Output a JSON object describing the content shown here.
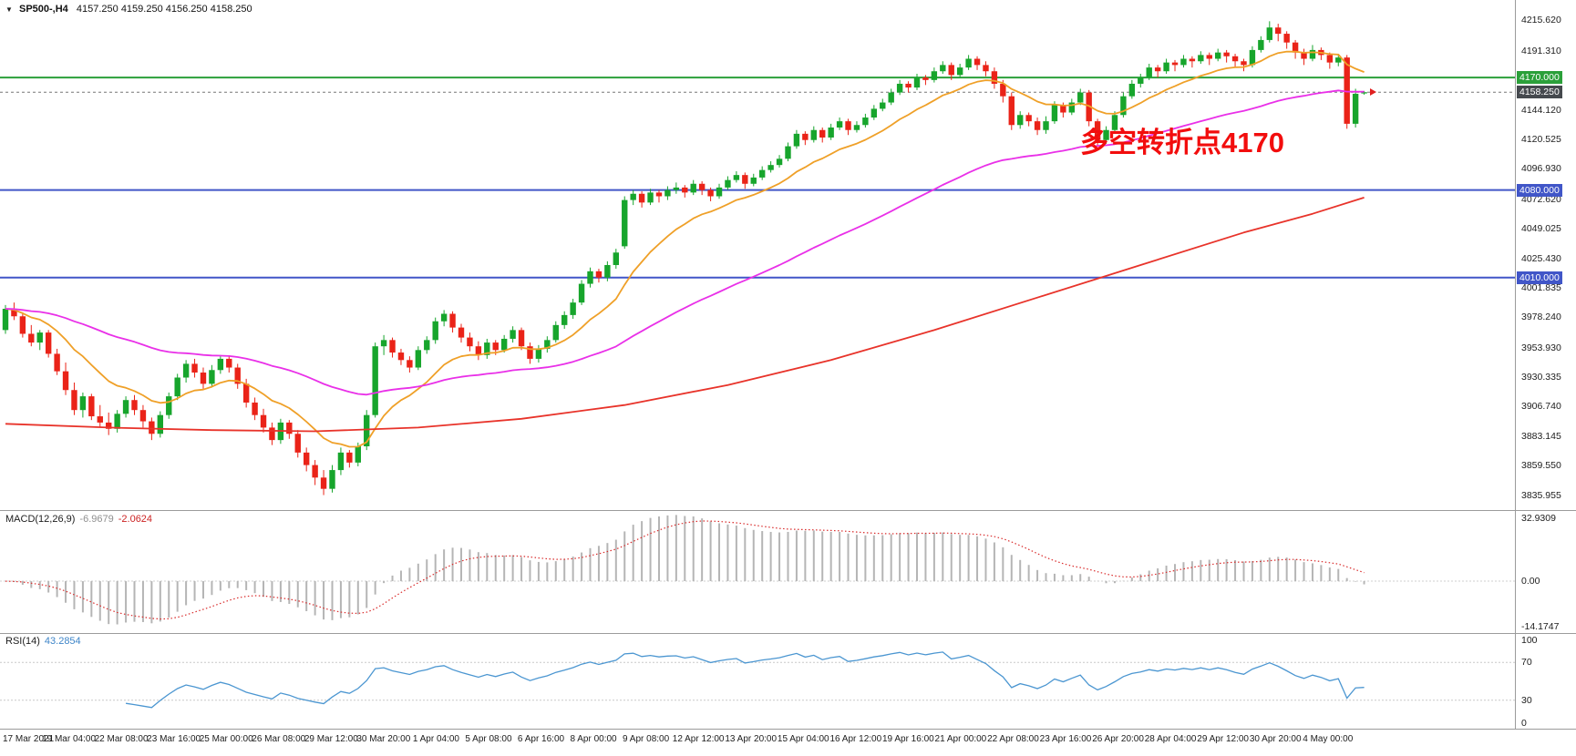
{
  "header": {
    "dropdown_icon": "▼",
    "symbol_period": "SP500-,H4",
    "open": "4157.250",
    "high": "4159.250",
    "low": "4156.250",
    "close": "4158.250"
  },
  "annotation": {
    "text": "多空转折点4170",
    "color": "#f20d0d"
  },
  "price_axis": {
    "labels": [
      "4215.620",
      "4191.310",
      "4144.120",
      "4120.525",
      "4096.930",
      "4072.620",
      "4049.025",
      "4025.430",
      "4001.835",
      "3978.240",
      "3953.930",
      "3930.335",
      "3906.740",
      "3883.145",
      "3859.550",
      "3835.955"
    ],
    "badges": [
      {
        "text": "4170.000",
        "type": "level-green",
        "price": 4170.0
      },
      {
        "text": "4158.250",
        "type": "current",
        "price": 4158.25
      },
      {
        "text": "4080.000",
        "type": "level-blue",
        "price": 4080.0
      },
      {
        "text": "4010.000",
        "type": "level-blue",
        "price": 4010.0
      }
    ]
  },
  "chart_data": {
    "type": "candlestick",
    "title": "SP500- H4",
    "y_range": [
      3824,
      4232
    ],
    "current_price": 4158.25,
    "candle_colors": {
      "up": "#17a52c",
      "down": "#ea2318"
    },
    "horizontal_lines": [
      {
        "price": 4170.0,
        "color": "#2ba03a",
        "width": 2
      },
      {
        "price": 4080.0,
        "color": "#4156c8",
        "width": 2
      },
      {
        "price": 4010.0,
        "color": "#4156c8",
        "width": 2
      }
    ],
    "x_labels": [
      "17 Mar 2021",
      "19 Mar 04:00",
      "22 Mar 08:00",
      "23 Mar 16:00",
      "25 Mar 00:00",
      "26 Mar 08:00",
      "29 Mar 12:00",
      "30 Mar 20:00",
      "1 Apr 04:00",
      "5 Apr 08:00",
      "6 Apr 16:00",
      "8 Apr 00:00",
      "9 Apr 08:00",
      "12 Apr 12:00",
      "13 Apr 20:00",
      "15 Apr 04:00",
      "16 Apr 12:00",
      "19 Apr 16:00",
      "21 Apr 00:00",
      "22 Apr 08:00",
      "23 Apr 16:00",
      "26 Apr 20:00",
      "28 Apr 04:00",
      "29 Apr 12:00",
      "30 Apr 20:00",
      "4 May 00:00"
    ],
    "candles": [
      [
        3968,
        3988,
        3965,
        3985
      ],
      [
        3985,
        3990,
        3976,
        3979
      ],
      [
        3979,
        3982,
        3962,
        3965
      ],
      [
        3965,
        3972,
        3955,
        3958
      ],
      [
        3958,
        3968,
        3952,
        3966
      ],
      [
        3966,
        3968,
        3946,
        3949
      ],
      [
        3949,
        3953,
        3932,
        3935
      ],
      [
        3935,
        3942,
        3916,
        3920
      ],
      [
        3920,
        3926,
        3900,
        3904
      ],
      [
        3904,
        3918,
        3898,
        3915
      ],
      [
        3915,
        3917,
        3896,
        3899
      ],
      [
        3899,
        3908,
        3890,
        3894
      ],
      [
        3894,
        3902,
        3884,
        3889
      ],
      [
        3889,
        3904,
        3886,
        3901
      ],
      [
        3901,
        3915,
        3898,
        3912
      ],
      [
        3912,
        3916,
        3900,
        3904
      ],
      [
        3904,
        3908,
        3890,
        3895
      ],
      [
        3895,
        3898,
        3880,
        3885
      ],
      [
        3885,
        3903,
        3882,
        3900
      ],
      [
        3900,
        3918,
        3897,
        3915
      ],
      [
        3915,
        3933,
        3912,
        3930
      ],
      [
        3930,
        3944,
        3926,
        3941
      ],
      [
        3941,
        3945,
        3930,
        3934
      ],
      [
        3934,
        3938,
        3921,
        3925
      ],
      [
        3925,
        3940,
        3922,
        3936
      ],
      [
        3936,
        3948,
        3933,
        3945
      ],
      [
        3945,
        3947,
        3934,
        3938
      ],
      [
        3938,
        3941,
        3921,
        3925
      ],
      [
        3925,
        3929,
        3906,
        3910
      ],
      [
        3910,
        3914,
        3896,
        3900
      ],
      [
        3900,
        3905,
        3886,
        3890
      ],
      [
        3890,
        3894,
        3876,
        3880
      ],
      [
        3880,
        3897,
        3877,
        3894
      ],
      [
        3894,
        3896,
        3881,
        3885
      ],
      [
        3885,
        3888,
        3866,
        3870
      ],
      [
        3870,
        3874,
        3855,
        3860
      ],
      [
        3860,
        3864,
        3844,
        3850
      ],
      [
        3850,
        3856,
        3836,
        3841
      ],
      [
        3841,
        3860,
        3838,
        3856
      ],
      [
        3856,
        3874,
        3852,
        3870
      ],
      [
        3870,
        3872,
        3858,
        3862
      ],
      [
        3862,
        3878,
        3859,
        3875
      ],
      [
        3875,
        3904,
        3872,
        3900
      ],
      [
        3900,
        3958,
        3898,
        3955
      ],
      [
        3955,
        3964,
        3948,
        3960
      ],
      [
        3960,
        3962,
        3946,
        3950
      ],
      [
        3950,
        3953,
        3940,
        3944
      ],
      [
        3944,
        3947,
        3934,
        3938
      ],
      [
        3938,
        3955,
        3936,
        3952
      ],
      [
        3952,
        3963,
        3949,
        3960
      ],
      [
        3960,
        3978,
        3957,
        3975
      ],
      [
        3975,
        3984,
        3971,
        3981
      ],
      [
        3981,
        3983,
        3966,
        3970
      ],
      [
        3970,
        3973,
        3958,
        3962
      ],
      [
        3962,
        3966,
        3951,
        3955
      ],
      [
        3955,
        3959,
        3944,
        3948
      ],
      [
        3948,
        3961,
        3945,
        3958
      ],
      [
        3958,
        3960,
        3948,
        3952
      ],
      [
        3952,
        3964,
        3950,
        3961
      ],
      [
        3961,
        3971,
        3958,
        3968
      ],
      [
        3968,
        3970,
        3952,
        3955
      ],
      [
        3955,
        3958,
        3941,
        3945
      ],
      [
        3945,
        3956,
        3942,
        3953
      ],
      [
        3953,
        3963,
        3950,
        3960
      ],
      [
        3960,
        3975,
        3958,
        3972
      ],
      [
        3972,
        3983,
        3969,
        3980
      ],
      [
        3980,
        3993,
        3977,
        3990
      ],
      [
        3990,
        4008,
        3988,
        4005
      ],
      [
        4005,
        4018,
        4002,
        4015
      ],
      [
        4015,
        4017,
        4006,
        4010
      ],
      [
        4010,
        4023,
        4007,
        4020
      ],
      [
        4020,
        4033,
        4017,
        4030
      ],
      [
        4035,
        4075,
        4033,
        4072
      ],
      [
        4072,
        4080,
        4068,
        4077
      ],
      [
        4077,
        4079,
        4066,
        4070
      ],
      [
        4070,
        4081,
        4068,
        4078
      ],
      [
        4078,
        4080,
        4070,
        4075
      ],
      [
        4075,
        4083,
        4072,
        4080
      ],
      [
        4080,
        4086,
        4077,
        4082
      ],
      [
        4082,
        4084,
        4074,
        4078
      ],
      [
        4078,
        4088,
        4076,
        4085
      ],
      [
        4085,
        4087,
        4076,
        4080
      ],
      [
        4080,
        4082,
        4071,
        4075
      ],
      [
        4075,
        4085,
        4073,
        4082
      ],
      [
        4082,
        4091,
        4080,
        4088
      ],
      [
        4088,
        4095,
        4086,
        4092
      ],
      [
        4092,
        4094,
        4081,
        4085
      ],
      [
        4085,
        4093,
        4083,
        4090
      ],
      [
        4090,
        4099,
        4088,
        4096
      ],
      [
        4096,
        4103,
        4094,
        4100
      ],
      [
        4100,
        4108,
        4098,
        4105
      ],
      [
        4105,
        4118,
        4103,
        4115
      ],
      [
        4115,
        4128,
        4113,
        4125
      ],
      [
        4125,
        4127,
        4116,
        4120
      ],
      [
        4120,
        4131,
        4118,
        4128
      ],
      [
        4128,
        4130,
        4118,
        4122
      ],
      [
        4122,
        4133,
        4120,
        4130
      ],
      [
        4130,
        4138,
        4128,
        4135
      ],
      [
        4135,
        4137,
        4124,
        4128
      ],
      [
        4128,
        4135,
        4126,
        4132
      ],
      [
        4132,
        4141,
        4130,
        4138
      ],
      [
        4138,
        4148,
        4136,
        4145
      ],
      [
        4145,
        4153,
        4143,
        4150
      ],
      [
        4150,
        4161,
        4148,
        4158
      ],
      [
        4158,
        4168,
        4156,
        4165
      ],
      [
        4165,
        4167,
        4158,
        4162
      ],
      [
        4162,
        4173,
        4160,
        4170
      ],
      [
        4170,
        4172,
        4164,
        4168
      ],
      [
        4168,
        4178,
        4166,
        4175
      ],
      [
        4175,
        4183,
        4173,
        4180
      ],
      [
        4180,
        4182,
        4168,
        4172
      ],
      [
        4172,
        4181,
        4170,
        4178
      ],
      [
        4178,
        4188,
        4176,
        4185
      ],
      [
        4185,
        4187,
        4176,
        4180
      ],
      [
        4180,
        4183,
        4171,
        4175
      ],
      [
        4175,
        4178,
        4161,
        4165
      ],
      [
        4165,
        4168,
        4150,
        4155
      ],
      [
        4155,
        4158,
        4128,
        4132
      ],
      [
        4132,
        4143,
        4129,
        4140
      ],
      [
        4140,
        4142,
        4131,
        4135
      ],
      [
        4135,
        4138,
        4124,
        4128
      ],
      [
        4128,
        4139,
        4125,
        4135
      ],
      [
        4135,
        4151,
        4133,
        4148
      ],
      [
        4148,
        4150,
        4138,
        4142
      ],
      [
        4142,
        4153,
        4140,
        4150
      ],
      [
        4150,
        4161,
        4148,
        4158
      ],
      [
        4158,
        4160,
        4131,
        4135
      ],
      [
        4135,
        4137,
        4115,
        4120
      ],
      [
        4120,
        4131,
        4117,
        4128
      ],
      [
        4128,
        4143,
        4126,
        4140
      ],
      [
        4140,
        4158,
        4138,
        4155
      ],
      [
        4155,
        4168,
        4153,
        4165
      ],
      [
        4165,
        4173,
        4162,
        4170
      ],
      [
        4170,
        4181,
        4168,
        4178
      ],
      [
        4178,
        4180,
        4170,
        4175
      ],
      [
        4175,
        4185,
        4173,
        4182
      ],
      [
        4182,
        4184,
        4175,
        4180
      ],
      [
        4180,
        4188,
        4178,
        4185
      ],
      [
        4185,
        4187,
        4178,
        4183
      ],
      [
        4183,
        4191,
        4181,
        4188
      ],
      [
        4188,
        4190,
        4180,
        4185
      ],
      [
        4185,
        4193,
        4183,
        4190
      ],
      [
        4190,
        4192,
        4182,
        4187
      ],
      [
        4187,
        4189,
        4178,
        4183
      ],
      [
        4183,
        4185,
        4175,
        4180
      ],
      [
        4180,
        4195,
        4178,
        4192
      ],
      [
        4192,
        4203,
        4190,
        4200
      ],
      [
        4200,
        4215,
        4198,
        4210
      ],
      [
        4210,
        4213,
        4199,
        4205
      ],
      [
        4205,
        4207,
        4193,
        4198
      ],
      [
        4198,
        4200,
        4185,
        4190
      ],
      [
        4190,
        4193,
        4180,
        4185
      ],
      [
        4185,
        4196,
        4183,
        4192
      ],
      [
        4192,
        4194,
        4184,
        4188
      ],
      [
        4188,
        4190,
        4177,
        4182
      ],
      [
        4182,
        4189,
        4179,
        4186
      ],
      [
        4186,
        4188,
        4129,
        4133
      ],
      [
        4133,
        4161,
        4130,
        4157
      ],
      [
        4157.25,
        4159.25,
        4156.25,
        4158.25
      ]
    ],
    "moving_averages": [
      {
        "name": "fast",
        "type": "ema",
        "period": 13,
        "color": "#efa028"
      },
      {
        "name": "medium",
        "type": "ema",
        "period": 55,
        "color": "#e930e8"
      },
      {
        "name": "slow",
        "type": "points",
        "color": "#e8332a",
        "points": [
          [
            0,
            3893
          ],
          [
            12,
            3890
          ],
          [
            24,
            3888
          ],
          [
            36,
            3887
          ],
          [
            48,
            3890
          ],
          [
            60,
            3897
          ],
          [
            72,
            3908
          ],
          [
            84,
            3924
          ],
          [
            96,
            3944
          ],
          [
            108,
            3968
          ],
          [
            120,
            3994
          ],
          [
            132,
            4020
          ],
          [
            144,
            4046
          ],
          [
            152,
            4061
          ],
          [
            158,
            4074
          ]
        ]
      }
    ],
    "indicators": {
      "macd": {
        "title": "MACD(12,26,9)",
        "fast": 12,
        "slow": 26,
        "signal": 9,
        "main_value": "-6.9679",
        "signal_value": "-2.0624",
        "axis_labels": [
          "32.9309",
          "0.00",
          "-14.1747"
        ],
        "histogram_color": "#b5b5b5",
        "signal_color": "#d92b2b"
      },
      "rsi": {
        "title": "RSI(14)",
        "period": 14,
        "value": "43.2854",
        "axis_labels": [
          "100",
          "70",
          "30",
          "0"
        ],
        "levels": [
          70,
          30
        ],
        "line_color": "#4b96d1"
      }
    }
  }
}
